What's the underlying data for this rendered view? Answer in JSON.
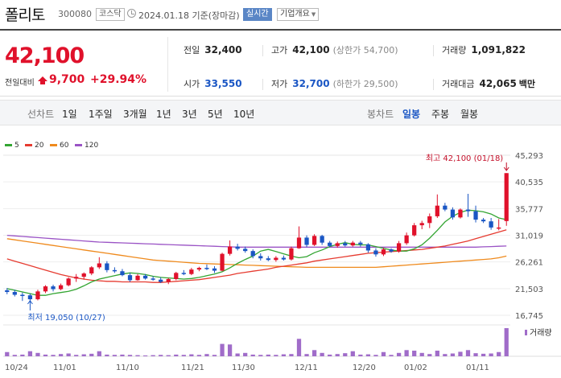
{
  "header": {
    "stock_name": "폴리토",
    "stock_code": "300080",
    "market_badge": "코스닥",
    "date_text": "2024.01.18 기준(장마감)",
    "realtime_button": "실시간",
    "company_button": "기업개요"
  },
  "summary": {
    "current_price": "42,100",
    "prev_label": "전일대비",
    "change": "9,700",
    "change_pct": "+29.94%",
    "prev_close": {
      "label": "전일",
      "value": "32,400"
    },
    "high": {
      "label": "고가",
      "value": "42,100",
      "sub": "(상한가 54,700)"
    },
    "volume": {
      "label": "거래량",
      "value": "1,091,822"
    },
    "open": {
      "label": "시가",
      "value": "33,550"
    },
    "low": {
      "label": "저가",
      "value": "32,700",
      "sub": "(하한가 29,500)"
    },
    "amount": {
      "label": "거래대금",
      "value": "42,065",
      "unit": "백만"
    },
    "colors": {
      "up": "#e0112b",
      "down": "#1a56c4"
    }
  },
  "tabs": {
    "line_chart_label": "선차트",
    "periods": [
      "1일",
      "1주일",
      "3개월",
      "1년",
      "3년",
      "5년",
      "10년"
    ],
    "candle_chart_label": "봉차트",
    "candle_periods": [
      "일봉",
      "주봉",
      "월봉"
    ],
    "selected_candle": "일봉"
  },
  "chart_data": {
    "type": "candlestick",
    "y_ticks": [
      45293,
      40535,
      35777,
      31019,
      26261,
      21503,
      16745
    ],
    "ylim": [
      16745,
      45293
    ],
    "x_labels": [
      "10/24",
      "11/01",
      "11/10",
      "11/21",
      "11/30",
      "12/11",
      "12/20",
      "01/02",
      "01/11"
    ],
    "legend": [
      {
        "label": "5",
        "color": "#33a532"
      },
      {
        "label": "20",
        "color": "#e63b30"
      },
      {
        "label": "60",
        "color": "#ef8a1d"
      },
      {
        "label": "120",
        "color": "#9a53c5"
      }
    ],
    "max_label": "최고 42,100 (01/18)",
    "min_label": "최저 19,050 (10/27)",
    "volume_label": "거래량",
    "colors": {
      "up": "#e0112b",
      "down": "#1a56c4",
      "volume": "#a06cc9"
    },
    "candles": [
      [
        21200,
        21600,
        20500,
        20900
      ],
      [
        20900,
        21300,
        20100,
        20400
      ],
      [
        20400,
        20800,
        19300,
        20300
      ],
      [
        20300,
        20600,
        19050,
        19600
      ],
      [
        19600,
        21300,
        19400,
        21000
      ],
      [
        21000,
        22100,
        20700,
        21900
      ],
      [
        21900,
        22200,
        21000,
        21400
      ],
      [
        21400,
        22400,
        21200,
        22100
      ],
      [
        22100,
        23500,
        21900,
        23300
      ],
      [
        23300,
        24100,
        22700,
        23600
      ],
      [
        23600,
        24400,
        23100,
        24200
      ],
      [
        24200,
        25500,
        23900,
        25300
      ],
      [
        25300,
        27100,
        25000,
        26000
      ],
      [
        26000,
        26400,
        24400,
        24800
      ],
      [
        24800,
        25300,
        24300,
        24600
      ],
      [
        24600,
        25000,
        23700,
        23900
      ],
      [
        23900,
        24300,
        22700,
        23000
      ],
      [
        23000,
        24100,
        22900,
        23800
      ],
      [
        23800,
        24100,
        23100,
        23300
      ],
      [
        23300,
        23700,
        22900,
        23100
      ],
      [
        23100,
        23500,
        22500,
        22700
      ],
      [
        22700,
        23400,
        22300,
        23200
      ],
      [
        23200,
        24500,
        23000,
        24300
      ],
      [
        24300,
        24800,
        23900,
        24100
      ],
      [
        24100,
        25200,
        23900,
        24900
      ],
      [
        24900,
        25400,
        24600,
        25200
      ],
      [
        25200,
        25800,
        24800,
        25100
      ],
      [
        25100,
        25500,
        24300,
        24700
      ],
      [
        24700,
        27900,
        24600,
        27700
      ],
      [
        27700,
        30100,
        27400,
        29000
      ],
      [
        29000,
        29500,
        28300,
        28600
      ],
      [
        28600,
        29000,
        27900,
        28200
      ],
      [
        28200,
        28500,
        26900,
        27300
      ],
      [
        27300,
        27800,
        26500,
        26900
      ],
      [
        26900,
        27300,
        26400,
        26600
      ],
      [
        26600,
        27300,
        26300,
        27000
      ],
      [
        27000,
        27400,
        26500,
        26700
      ],
      [
        26700,
        29000,
        26500,
        28700
      ],
      [
        28700,
        32600,
        28600,
        30600
      ],
      [
        30600,
        31000,
        28900,
        29300
      ],
      [
        29300,
        31200,
        29100,
        30900
      ],
      [
        30900,
        31100,
        29300,
        29700
      ],
      [
        29700,
        30000,
        28900,
        29100
      ],
      [
        29100,
        29900,
        28800,
        29600
      ],
      [
        29600,
        30000,
        29000,
        29200
      ],
      [
        29200,
        30000,
        29000,
        29700
      ],
      [
        29700,
        30000,
        29000,
        29400
      ],
      [
        29400,
        29600,
        27900,
        28300
      ],
      [
        28300,
        28700,
        27200,
        27600
      ],
      [
        27600,
        28800,
        27300,
        28500
      ],
      [
        28500,
        28700,
        27900,
        28100
      ],
      [
        28100,
        30000,
        27900,
        29600
      ],
      [
        29600,
        31500,
        29300,
        31000
      ],
      [
        31000,
        33200,
        30800,
        32800
      ],
      [
        32800,
        33600,
        32100,
        33200
      ],
      [
        33200,
        34900,
        32300,
        34400
      ],
      [
        34400,
        38300,
        34100,
        36300
      ],
      [
        36300,
        36800,
        35300,
        35600
      ],
      [
        35600,
        36000,
        33800,
        34200
      ],
      [
        34200,
        35800,
        34000,
        35600
      ],
      [
        35600,
        38400,
        34300,
        35300
      ],
      [
        35300,
        36300,
        33300,
        33800
      ],
      [
        33800,
        34100,
        33200,
        33500
      ],
      [
        33500,
        34100,
        32000,
        32400
      ],
      [
        32400,
        33900,
        31900,
        32400
      ],
      [
        33550,
        42100,
        32700,
        42100
      ]
    ],
    "volumes": [
      0.15,
      0.05,
      0.06,
      0.18,
      0.12,
      0.06,
      0.05,
      0.08,
      0.1,
      0.05,
      0.07,
      0.09,
      0.18,
      0.06,
      0.05,
      0.06,
      0.05,
      0.04,
      0.03,
      0.04,
      0.05,
      0.04,
      0.06,
      0.05,
      0.07,
      0.05,
      0.08,
      0.05,
      0.44,
      0.42,
      0.1,
      0.12,
      0.06,
      0.05,
      0.06,
      0.05,
      0.07,
      0.08,
      0.62,
      0.08,
      0.22,
      0.12,
      0.06,
      0.08,
      0.11,
      0.18,
      0.06,
      0.07,
      0.05,
      0.15,
      0.05,
      0.12,
      0.22,
      0.2,
      0.12,
      0.08,
      0.2,
      0.08,
      0.1,
      0.16,
      0.22,
      0.11,
      0.09,
      0.1,
      0.15,
      1.0
    ],
    "ma5": [
      21500,
      21200,
      20900,
      20600,
      20300,
      20300,
      20600,
      20800,
      21000,
      21400,
      22000,
      22700,
      23200,
      23500,
      23800,
      24100,
      24300,
      24200,
      24000,
      23700,
      23500,
      23400,
      23300,
      23200,
      23300,
      23500,
      23800,
      24100,
      24500,
      25200,
      26000,
      26700,
      27300,
      28200,
      28500,
      28100,
      27700,
      27300,
      27000,
      27200,
      27900,
      28400,
      29000,
      29400,
      29700,
      29400,
      29300,
      29300,
      29000,
      28700,
      28400,
      28200,
      28200,
      28600,
      29300,
      30500,
      31900,
      33400,
      34400,
      35100,
      35500,
      35400,
      35200,
      34800,
      34100,
      33800
    ],
    "ma20": [
      26800,
      26400,
      26000,
      25600,
      25200,
      24800,
      24400,
      24000,
      23700,
      23400,
      23200,
      23000,
      22900,
      22800,
      22800,
      22700,
      22700,
      22700,
      22700,
      22600,
      22600,
      22700,
      22800,
      22900,
      23000,
      23100,
      23300,
      23500,
      23700,
      23900,
      24200,
      24400,
      24600,
      24800,
      25000,
      25300,
      25500,
      25700,
      25900,
      26100,
      26400,
      26600,
      26800,
      27000,
      27200,
      27400,
      27600,
      27800,
      27900,
      28000,
      28100,
      28200,
      28300,
      28400,
      28500,
      28700,
      28900,
      29100,
      29400,
      29700,
      30000,
      30400,
      30800,
      31200,
      31600,
      32000
    ],
    "ma60": [
      30400,
      30200,
      30000,
      29800,
      29600,
      29400,
      29200,
      29000,
      28800,
      28600,
      28400,
      28200,
      28000,
      27800,
      27600,
      27400,
      27200,
      27000,
      26800,
      26600,
      26500,
      26400,
      26300,
      26200,
      26100,
      26000,
      25950,
      25900,
      25850,
      25800,
      25750,
      25700,
      25650,
      25600,
      25550,
      25500,
      25450,
      25400,
      25350,
      25300,
      25300,
      25300,
      25300,
      25300,
      25300,
      25300,
      25300,
      25300,
      25300,
      25400,
      25500,
      25600,
      25700,
      25800,
      25900,
      26000,
      26100,
      26200,
      26300,
      26400,
      26500,
      26600,
      26700,
      26800,
      27000,
      27300
    ],
    "ma120": [
      31000,
      30900,
      30800,
      30700,
      30600,
      30500,
      30400,
      30300,
      30200,
      30100,
      30000,
      29900,
      29800,
      29750,
      29700,
      29650,
      29600,
      29550,
      29500,
      29450,
      29400,
      29350,
      29300,
      29250,
      29200,
      29150,
      29100,
      29050,
      29000,
      28950,
      28900,
      28900,
      28900,
      28900,
      28900,
      28900,
      28900,
      28900,
      28900,
      28900,
      28900,
      28900,
      28900,
      28900,
      28900,
      28900,
      28900,
      28900,
      28900,
      28900,
      28900,
      28900,
      28900,
      28900,
      28900,
      28900,
      28900,
      28900,
      28900,
      28900,
      28900,
      28900,
      28950,
      29000,
      29050,
      29100
    ]
  }
}
